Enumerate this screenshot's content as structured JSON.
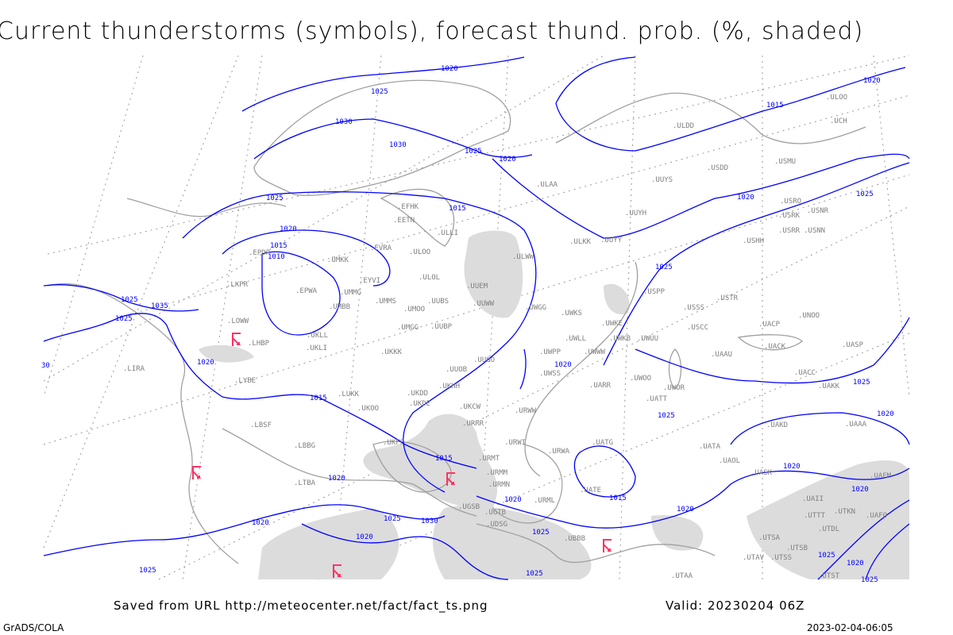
{
  "title": "Current thunderstorms (symbols), forecast thund. prob. (%, shaded)",
  "footer": {
    "saved_from": "Saved from URL http://meteocenter.net/fact/fact_ts.png",
    "valid": "Valid: 20230204 06Z",
    "software": "GrADS/COLA",
    "generated": "2023-02-04-06:05"
  },
  "colors": {
    "isobar": "#0000ff",
    "coast": "#a0a0a0",
    "shade": "#dcdcdc",
    "storm_symbol": "#ff3366",
    "station": "#808080"
  },
  "icons": {
    "storm": "thunderstorm-symbol"
  },
  "stations": [
    "ULOO",
    "UCH",
    "ULDD",
    "USDD",
    "USMU",
    "ULAA",
    "UUYS",
    "EFHK",
    "EETN",
    "UUYH",
    "USRO",
    "USRK",
    "USNR",
    "USRR",
    "USNN",
    "USHH",
    "ULLI",
    "EVRA",
    "ULOO",
    "ULKK",
    "UUYY",
    "ULWW",
    "UMKK",
    "EPDP",
    "ULOL",
    "UUEM",
    "EYVI",
    "UMMG",
    "EPWA",
    "UMMS",
    "UMOO",
    "UUBS",
    "UUWW",
    "UWGG",
    "UWKS",
    "USPP",
    "USSS",
    "USTR",
    "UMBB",
    "UMGG",
    "UUBP",
    "UWKE",
    "UWKB",
    "UWUU",
    "USCC",
    "UACP",
    "UNOO",
    "UKLL",
    "UKLI",
    "UKKK",
    "UWLL",
    "UWWW",
    "UACK",
    "UASP",
    "LOWW",
    "LHBP",
    "LKPR",
    "UUOO",
    "UWPP",
    "UAAU",
    "UUOB",
    "UWSS",
    "UACC",
    "UARR",
    "UWOO",
    "UWOR",
    "UATT",
    "UAKK",
    "LIRA",
    "LYBE",
    "LUKK",
    "UKHH",
    "UKDD",
    "UKOO",
    "UKDE",
    "UKCW",
    "URWW",
    "URRR",
    "UAAA",
    "UAKD",
    "UATG",
    "UATA",
    "UAOL",
    "UASK",
    "URWI",
    "URMT",
    "URWA",
    "LBSF",
    "LBBG",
    "UKFF",
    "URMM",
    "URMN",
    "UATE",
    "UAFM",
    "UAII",
    "URML",
    "LTBA",
    "UGSB",
    "UGTB",
    "UDSG",
    "UTTT",
    "UTKN",
    "UAFO",
    "UTDL",
    "UBBB",
    "UTSA",
    "UTSB",
    "UTAV",
    "UTSS",
    "UTAA",
    "UTST"
  ],
  "isobar_labels": [
    "1020",
    "1025",
    "1030",
    "1030",
    "1025",
    "1020",
    "1025",
    "1015",
    "1020",
    "1015",
    "1010",
    "1025",
    "1035",
    "1025",
    "1020",
    "1015",
    "1020",
    "1020",
    "1025",
    "1015",
    "1025",
    "1030",
    "1020",
    "1020",
    "1025",
    "1025",
    "1015",
    "1020",
    "1020",
    "1015",
    "1020",
    "1025",
    "1025",
    "1020",
    "1025",
    "1025",
    "1020",
    "1020",
    "1020",
    "1025",
    "1020",
    "1025",
    "30"
  ]
}
